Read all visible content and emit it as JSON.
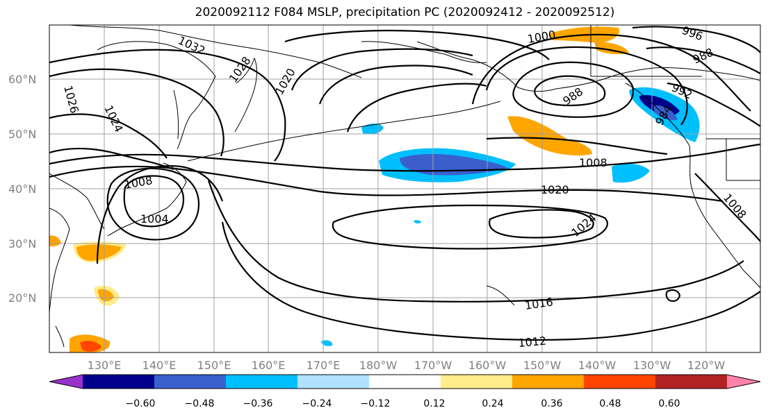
{
  "title": "2020092112 F084 MSLP, precipitation PC (2020092412 - 2020092512)",
  "lat_labels": [
    "60°N",
    "50°N",
    "40°N",
    "30°N",
    "20°N"
  ],
  "lon_labels": [
    "130°E",
    "140°E",
    "150°E",
    "160°E",
    "170°E",
    "180°W",
    "170°W",
    "160°W",
    "150°W",
    "140°W",
    "130°W",
    "120°W"
  ],
  "contour_labels": [
    "1032",
    "1028",
    "1020",
    "1026",
    "1024",
    "1008",
    "1004",
    "1000",
    "996",
    "988",
    "992",
    "988",
    "984",
    "1008",
    "1020",
    "1024",
    "1016",
    "1012",
    "1008"
  ],
  "colorbar": {
    "colors": [
      "#9932CC",
      "#00008B",
      "#3A5FCD",
      "#00BFFF",
      "#B0E2FF",
      "#FFFFFF",
      "#FFEC8B",
      "#FFA500",
      "#FF4500",
      "#B22222",
      "#FF82AB"
    ],
    "tick_labels": [
      "−0.60",
      "−0.48",
      "−0.36",
      "−0.24",
      "−0.12",
      "0.12",
      "0.24",
      "0.36",
      "0.48",
      "0.60"
    ]
  }
}
